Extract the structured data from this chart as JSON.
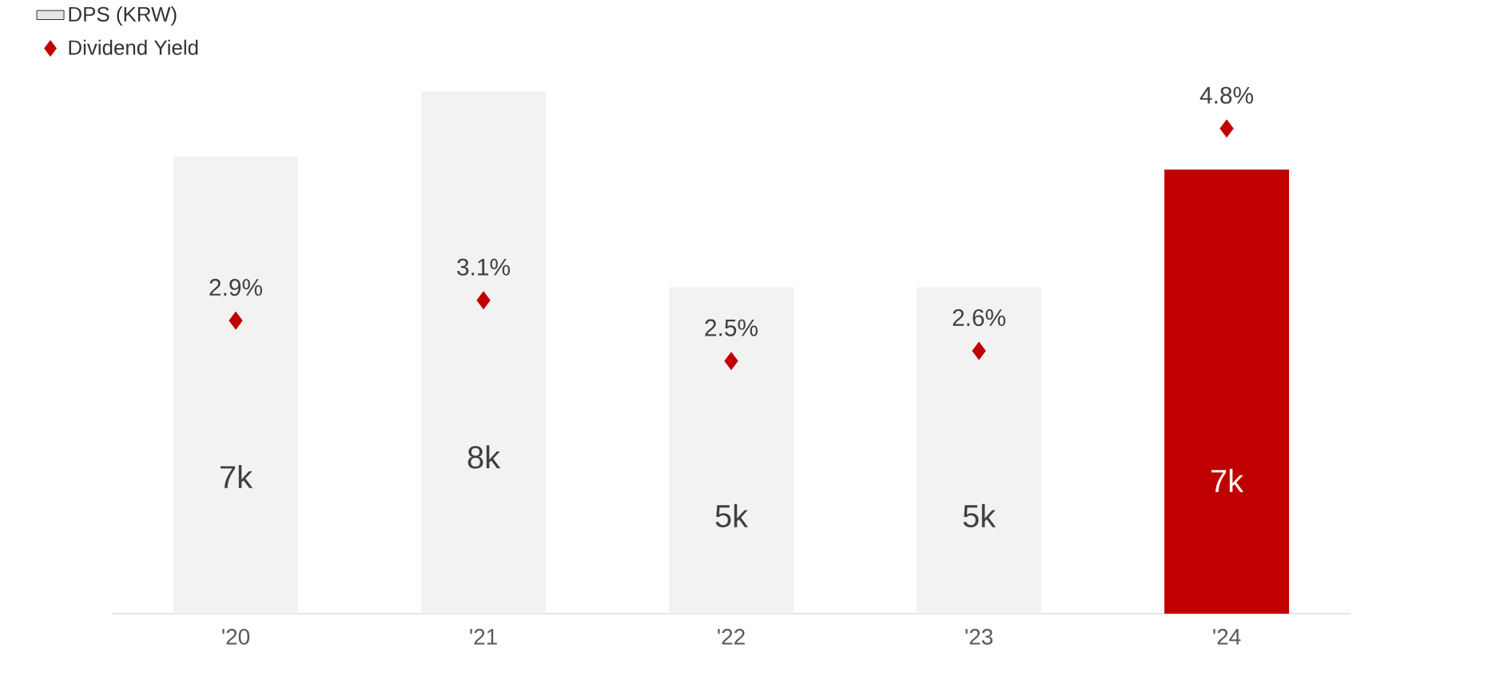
{
  "chart_data": {
    "type": "bar",
    "categories": [
      "'20",
      "'21",
      "'22",
      "'23",
      "'24"
    ],
    "legend": "top left",
    "series": [
      {
        "name": "DPS (KRW)",
        "color": "#f2f2f2",
        "colors": [
          "#f2f2f2",
          "#f2f2f2",
          "#f2f2f2",
          "#f2f2f2",
          "#c00000"
        ],
        "values": [
          7000,
          8000,
          5000,
          5000,
          6800
        ],
        "value_labels": [
          "7k",
          "8k",
          "5k",
          "5k",
          "7k"
        ]
      },
      {
        "name": "Dividend Yield",
        "type": "scatter",
        "axis": "y2",
        "marker": "diamond",
        "color": "#c00000",
        "values": [
          2.9,
          3.1,
          2.5,
          2.6,
          4.8
        ],
        "value_labels": [
          "2.9%",
          "3.1%",
          "2.5%",
          "2.6%",
          "4.8%"
        ]
      }
    ]
  }
}
